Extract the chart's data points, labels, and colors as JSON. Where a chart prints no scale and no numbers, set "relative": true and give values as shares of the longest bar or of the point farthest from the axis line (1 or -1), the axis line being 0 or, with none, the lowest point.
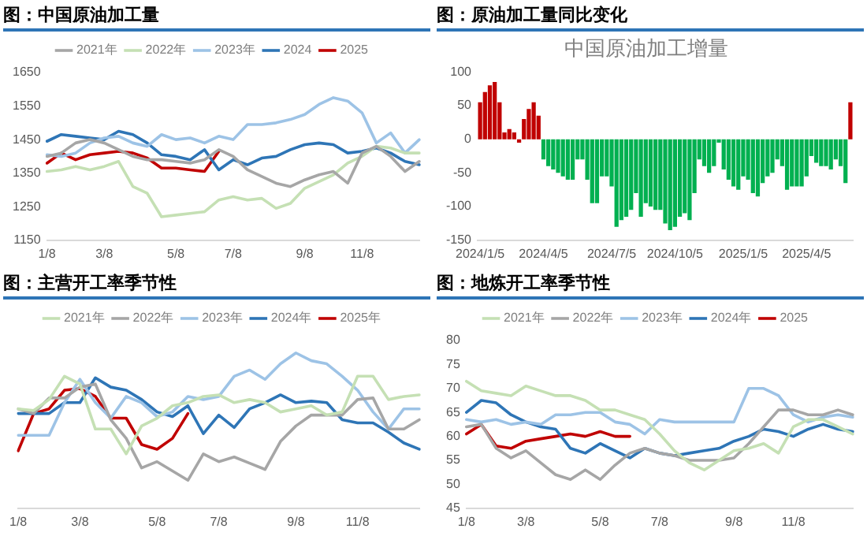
{
  "chart_data": [
    {
      "type": "line",
      "title": "图：中国原油加工量",
      "legend": "top",
      "categories": [
        "1/8",
        null,
        null,
        null,
        "3/8",
        null,
        null,
        null,
        null,
        "5/8",
        null,
        null,
        null,
        "7/8",
        null,
        null,
        null,
        null,
        "9/8",
        null,
        null,
        null,
        "11/8",
        null,
        null,
        null,
        null
      ],
      "ylim": [
        1150,
        1650
      ],
      "yticks": [
        1150,
        1250,
        1350,
        1450,
        1550,
        1650
      ],
      "series": [
        {
          "name": "2021年",
          "color": "#a6a6a6",
          "values": [
            1400,
            1410,
            1440,
            1450,
            1440,
            1420,
            1400,
            1390,
            1390,
            1385,
            1380,
            1390,
            1420,
            1400,
            1360,
            1340,
            1320,
            1310,
            1330,
            1345,
            1355,
            1320,
            1410,
            1430,
            1400,
            1355,
            1385
          ]
        },
        {
          "name": "2022年",
          "color": "#c5e0b4",
          "values": [
            1355,
            1360,
            1370,
            1360,
            1370,
            1385,
            1310,
            1290,
            1220,
            1225,
            1230,
            1235,
            1270,
            1280,
            1270,
            1275,
            1245,
            1260,
            1305,
            1325,
            1345,
            1380,
            1400,
            1430,
            1425,
            1410,
            1410
          ]
        },
        {
          "name": "2023年",
          "color": "#9dc3e6",
          "values": [
            1405,
            1400,
            1410,
            1440,
            1455,
            1460,
            1440,
            1430,
            1465,
            1450,
            1455,
            1440,
            1460,
            1450,
            1495,
            1495,
            1500,
            1510,
            1525,
            1555,
            1575,
            1565,
            1530,
            1440,
            1470,
            1410,
            1450
          ]
        },
        {
          "name": "2024",
          "color": "#2e75b6",
          "values": [
            1445,
            1465,
            1460,
            1455,
            1450,
            1475,
            1465,
            1440,
            1405,
            1400,
            1390,
            1420,
            1360,
            1390,
            1375,
            1395,
            1400,
            1420,
            1435,
            1440,
            1435,
            1410,
            1415,
            1425,
            1410,
            1385,
            1375
          ]
        },
        {
          "name": "2025",
          "color": "#c00000",
          "values": [
            1380,
            1410,
            1390,
            1405,
            1410,
            1415,
            1410,
            1395,
            1365,
            1365,
            1360,
            1355,
            1415,
            null,
            null,
            null,
            null,
            null,
            null,
            null,
            null,
            null,
            null,
            null,
            null,
            null,
            null
          ]
        }
      ]
    },
    {
      "type": "bar",
      "title": "图：原油加工量同比变化",
      "subtitle": "中国原油加工增量",
      "categories": [
        "2024/1/5",
        null,
        null,
        null,
        null,
        null,
        null,
        null,
        null,
        null,
        null,
        null,
        null,
        "2024/4/5",
        null,
        null,
        null,
        null,
        null,
        null,
        null,
        null,
        null,
        null,
        null,
        null,
        null,
        "2024/7/5",
        null,
        null,
        null,
        null,
        null,
        null,
        null,
        null,
        null,
        null,
        null,
        null,
        "2024/10/5",
        null,
        null,
        null,
        null,
        null,
        null,
        null,
        null,
        null,
        null,
        null,
        null,
        null,
        "2025/1/5",
        null,
        null,
        null,
        null,
        null,
        null,
        null,
        null,
        null,
        null,
        null,
        null,
        "2025/4/5",
        null,
        null,
        null,
        null,
        null,
        null,
        null,
        null,
        null
      ],
      "ylim": [
        -150,
        100
      ],
      "yticks": [
        -150,
        -100,
        -50,
        0,
        50,
        100
      ],
      "values": [
        55,
        70,
        80,
        85,
        55,
        10,
        15,
        10,
        -5,
        30,
        45,
        55,
        35,
        -30,
        -40,
        -45,
        -50,
        -55,
        -60,
        -60,
        -30,
        -30,
        -60,
        -95,
        -95,
        -55,
        -55,
        -70,
        -130,
        -120,
        -115,
        -105,
        -80,
        -115,
        -95,
        -100,
        -105,
        -105,
        -125,
        -135,
        -130,
        -115,
        -110,
        -120,
        -80,
        -30,
        -40,
        -50,
        -40,
        -5,
        -45,
        -60,
        -70,
        -75,
        -55,
        -60,
        -80,
        -85,
        -65,
        -55,
        -50,
        -30,
        -40,
        -75,
        -70,
        -70,
        -70,
        -55,
        -25,
        -35,
        -40,
        -40,
        -45,
        -30,
        -40,
        -65,
        55
      ],
      "colors": [
        "#c00000",
        "#c00000",
        "#c00000",
        "#c00000",
        "#c00000",
        "#c00000",
        "#c00000",
        "#c00000",
        "#c00000",
        "#c00000",
        "#c00000",
        "#c00000",
        "#c00000",
        "#00b050",
        "#00b050",
        "#00b050",
        "#00b050",
        "#00b050",
        "#00b050",
        "#00b050",
        "#00b050",
        "#00b050",
        "#00b050",
        "#00b050",
        "#00b050",
        "#00b050",
        "#00b050",
        "#00b050",
        "#00b050",
        "#00b050",
        "#00b050",
        "#00b050",
        "#00b050",
        "#00b050",
        "#00b050",
        "#00b050",
        "#00b050",
        "#00b050",
        "#00b050",
        "#00b050",
        "#00b050",
        "#00b050",
        "#00b050",
        "#00b050",
        "#00b050",
        "#00b050",
        "#00b050",
        "#00b050",
        "#00b050",
        "#00b050",
        "#00b050",
        "#00b050",
        "#00b050",
        "#00b050",
        "#00b050",
        "#00b050",
        "#00b050",
        "#00b050",
        "#00b050",
        "#00b050",
        "#00b050",
        "#00b050",
        "#00b050",
        "#00b050",
        "#00b050",
        "#00b050",
        "#00b050",
        "#00b050",
        "#00b050",
        "#00b050",
        "#00b050",
        "#00b050",
        "#00b050",
        "#00b050",
        "#00b050",
        "#00b050",
        "#c00000"
      ]
    },
    {
      "type": "line",
      "title": "图：主营开工率季节性",
      "legend": "top",
      "relative": true,
      "categories": [
        "1/8",
        null,
        null,
        null,
        "3/8",
        null,
        null,
        null,
        null,
        "5/8",
        null,
        null,
        null,
        "7/8",
        null,
        null,
        null,
        null,
        "9/8",
        null,
        null,
        null,
        "11/8",
        null,
        null,
        null,
        null
      ],
      "series": [
        {
          "name": "2021年",
          "color": "#c5e0b4",
          "values": [
            0.64,
            0.63,
            0.7,
            0.85,
            0.8,
            0.51,
            0.51,
            0.35,
            0.53,
            0.58,
            0.66,
            0.68,
            0.72,
            0.73,
            0.68,
            0.7,
            0.68,
            0.62,
            0.64,
            0.66,
            0.6,
            0.62,
            0.85,
            0.85,
            0.7,
            0.72,
            0.73
          ]
        },
        {
          "name": "2022年",
          "color": "#a6a6a6",
          "values": [
            0.64,
            0.61,
            0.71,
            0.71,
            0.78,
            0.8,
            0.57,
            0.45,
            0.26,
            0.3,
            0.24,
            0.18,
            0.35,
            0.3,
            0.33,
            0.29,
            0.25,
            0.43,
            0.53,
            0.6,
            0.6,
            0.6,
            0.7,
            0.71,
            0.51,
            0.51,
            0.57
          ]
        },
        {
          "name": "2023年",
          "color": "#9dc3e6",
          "values": [
            0.47,
            0.47,
            0.47,
            0.68,
            0.83,
            0.68,
            0.58,
            0.72,
            0.68,
            0.59,
            0.62,
            0.72,
            0.7,
            0.72,
            0.85,
            0.89,
            0.83,
            0.93,
            1.0,
            0.95,
            0.93,
            0.85,
            0.76,
            0.62,
            0.51,
            0.64,
            0.64
          ]
        },
        {
          "name": "2024年",
          "color": "#2e75b6",
          "values": [
            0.61,
            0.61,
            0.61,
            0.68,
            0.68,
            0.84,
            0.78,
            0.76,
            0.7,
            0.62,
            0.59,
            0.66,
            0.48,
            0.6,
            0.52,
            0.64,
            0.68,
            0.73,
            0.68,
            0.69,
            0.68,
            0.57,
            0.55,
            0.55,
            0.49,
            0.42,
            0.38
          ]
        },
        {
          "name": "2025年",
          "color": "#c00000",
          "values": [
            0.37,
            0.61,
            0.64,
            0.76,
            0.77,
            0.72,
            0.58,
            0.58,
            0.41,
            0.38,
            0.45,
            0.61,
            null,
            null,
            null,
            null,
            null,
            null,
            null,
            null,
            null,
            null,
            null,
            null,
            null,
            null,
            null
          ]
        }
      ]
    },
    {
      "type": "line",
      "title": "图：地炼开工率季节性",
      "legend": "top",
      "categories": [
        "1/8",
        null,
        null,
        null,
        "3/8",
        null,
        null,
        null,
        null,
        "5/8",
        null,
        null,
        null,
        "7/8",
        null,
        null,
        null,
        null,
        "9/8",
        null,
        null,
        null,
        "11/8",
        null,
        null,
        null,
        null
      ],
      "ylim": [
        45,
        80
      ],
      "yticks": [
        45,
        50,
        55,
        60,
        65,
        70,
        75,
        80
      ],
      "series": [
        {
          "name": "2021年",
          "color": "#c5e0b4",
          "values": [
            71.5,
            69.5,
            69,
            68.5,
            70.5,
            69.5,
            68.5,
            68.5,
            67.5,
            65.5,
            65.5,
            64.5,
            63.5,
            60.5,
            57,
            54.5,
            53,
            55,
            57,
            57.5,
            58.5,
            56.5,
            62,
            63.5,
            63.5,
            62,
            60.5
          ]
        },
        {
          "name": "2022年",
          "color": "#a6a6a6",
          "values": [
            62,
            62.5,
            57.5,
            55.5,
            57,
            54.5,
            52,
            51,
            53,
            51,
            54,
            56.5,
            57.5,
            56.5,
            56,
            55,
            55,
            55,
            55.5,
            58.5,
            62,
            65.5,
            65.5,
            64.5,
            64.5,
            65.5,
            64.5
          ]
        },
        {
          "name": "2023年",
          "color": "#9dc3e6",
          "values": [
            63.5,
            63,
            63.5,
            62.5,
            63,
            62.5,
            64.5,
            64.5,
            65,
            65,
            63,
            62.5,
            60.5,
            63.5,
            63,
            63,
            63,
            63,
            63,
            70,
            70,
            68.5,
            64.5,
            63,
            64,
            64.5,
            64
          ]
        },
        {
          "name": "2024年",
          "color": "#2e75b6",
          "values": [
            65,
            67.5,
            67,
            64.5,
            63,
            62,
            61.5,
            57.5,
            56.5,
            58.5,
            57,
            55.5,
            57.5,
            56.5,
            56,
            56.5,
            57,
            57.5,
            59,
            60,
            61.5,
            61,
            60,
            61.5,
            62.5,
            61.5,
            61
          ]
        },
        {
          "name": "2025",
          "color": "#c00000",
          "values": [
            60.5,
            62.5,
            58,
            57.5,
            59,
            59.5,
            60,
            60.5,
            60,
            61,
            60,
            60,
            null,
            null,
            null,
            null,
            null,
            null,
            null,
            null,
            null,
            null,
            null,
            null,
            null,
            null,
            null
          ]
        }
      ]
    }
  ]
}
